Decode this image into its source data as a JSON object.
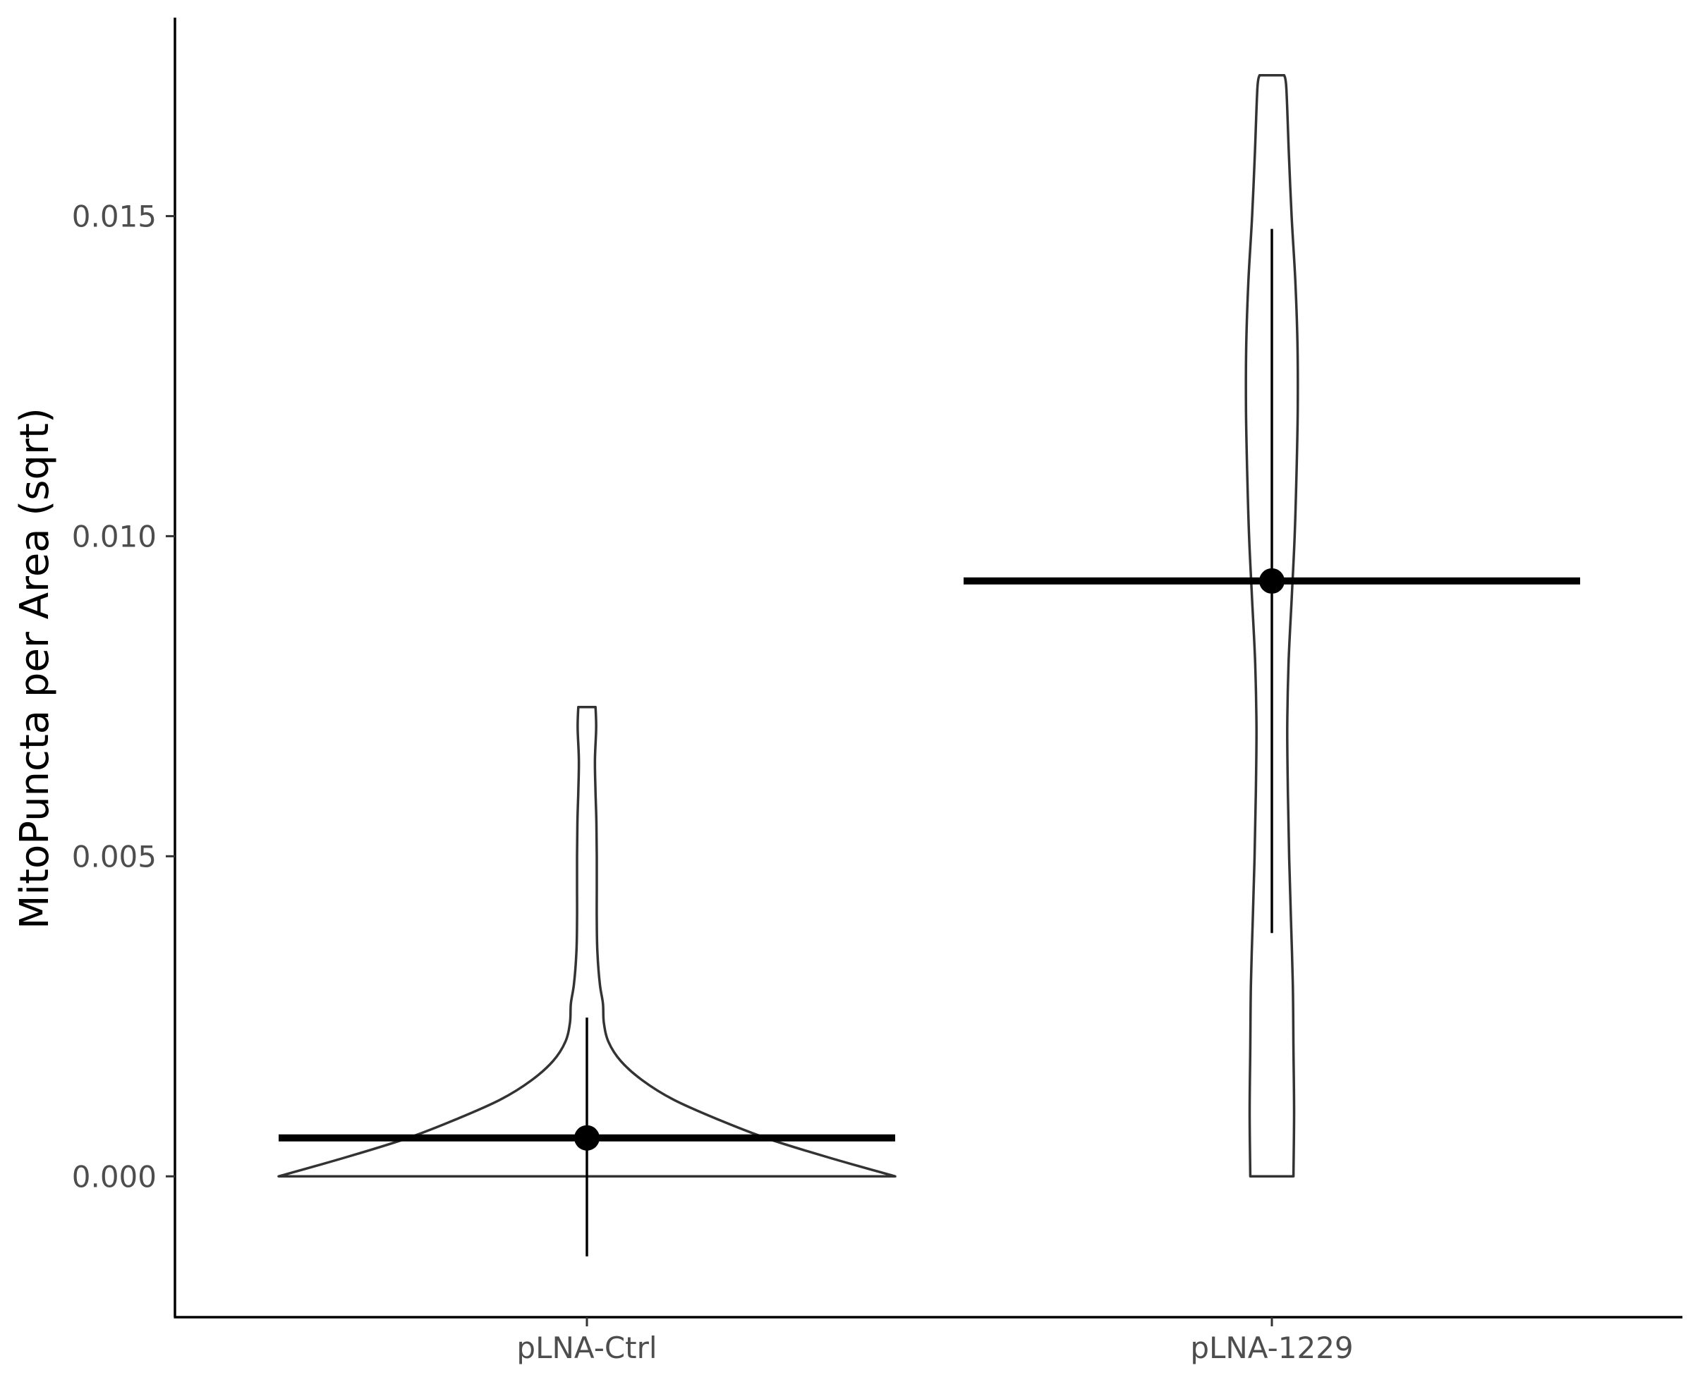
{
  "chart_data": {
    "type": "violin",
    "title": "",
    "xlabel": "",
    "ylabel": "MitoPuncta per Area (sqrt)",
    "ylim": [
      -0.0022,
      0.0181
    ],
    "yticks": [
      0.0,
      0.005,
      0.01,
      0.015
    ],
    "ytick_labels": [
      "0.000",
      "0.005",
      "0.010",
      "0.015"
    ],
    "categories": [
      "pLNA-Ctrl",
      "pLNA-1229"
    ],
    "groups": [
      {
        "name": "pLNA-Ctrl",
        "mean": 0.0006,
        "error_low": -0.00125,
        "error_high": 0.00248,
        "min": 0.0,
        "max": 0.00733,
        "density_profile": [
          [
            0.0,
            1.0
          ],
          [
            0.0003,
            0.78
          ],
          [
            0.0006,
            0.58
          ],
          [
            0.0009,
            0.42
          ],
          [
            0.0012,
            0.28
          ],
          [
            0.0015,
            0.18
          ],
          [
            0.0018,
            0.11
          ],
          [
            0.0021,
            0.07
          ],
          [
            0.0024,
            0.055
          ],
          [
            0.0027,
            0.052
          ],
          [
            0.003,
            0.042
          ],
          [
            0.0035,
            0.034
          ],
          [
            0.004,
            0.032
          ],
          [
            0.0045,
            0.032
          ],
          [
            0.005,
            0.032
          ],
          [
            0.0055,
            0.031
          ],
          [
            0.006,
            0.028
          ],
          [
            0.0065,
            0.026
          ],
          [
            0.007,
            0.03
          ],
          [
            0.00733,
            0.028
          ]
        ]
      },
      {
        "name": "pLNA-1229",
        "mean": 0.0093,
        "error_low": 0.0038,
        "error_high": 0.0148,
        "min": 0.0,
        "max": 0.0172,
        "density_profile": [
          [
            0.0,
            0.07
          ],
          [
            0.001,
            0.072
          ],
          [
            0.002,
            0.07
          ],
          [
            0.003,
            0.068
          ],
          [
            0.004,
            0.062
          ],
          [
            0.005,
            0.056
          ],
          [
            0.006,
            0.052
          ],
          [
            0.007,
            0.05
          ],
          [
            0.008,
            0.054
          ],
          [
            0.009,
            0.064
          ],
          [
            0.01,
            0.074
          ],
          [
            0.011,
            0.08
          ],
          [
            0.012,
            0.084
          ],
          [
            0.013,
            0.083
          ],
          [
            0.014,
            0.076
          ],
          [
            0.015,
            0.064
          ],
          [
            0.016,
            0.055
          ],
          [
            0.017,
            0.047
          ],
          [
            0.0172,
            0.04
          ]
        ]
      }
    ],
    "grid": false,
    "legend": "none"
  }
}
